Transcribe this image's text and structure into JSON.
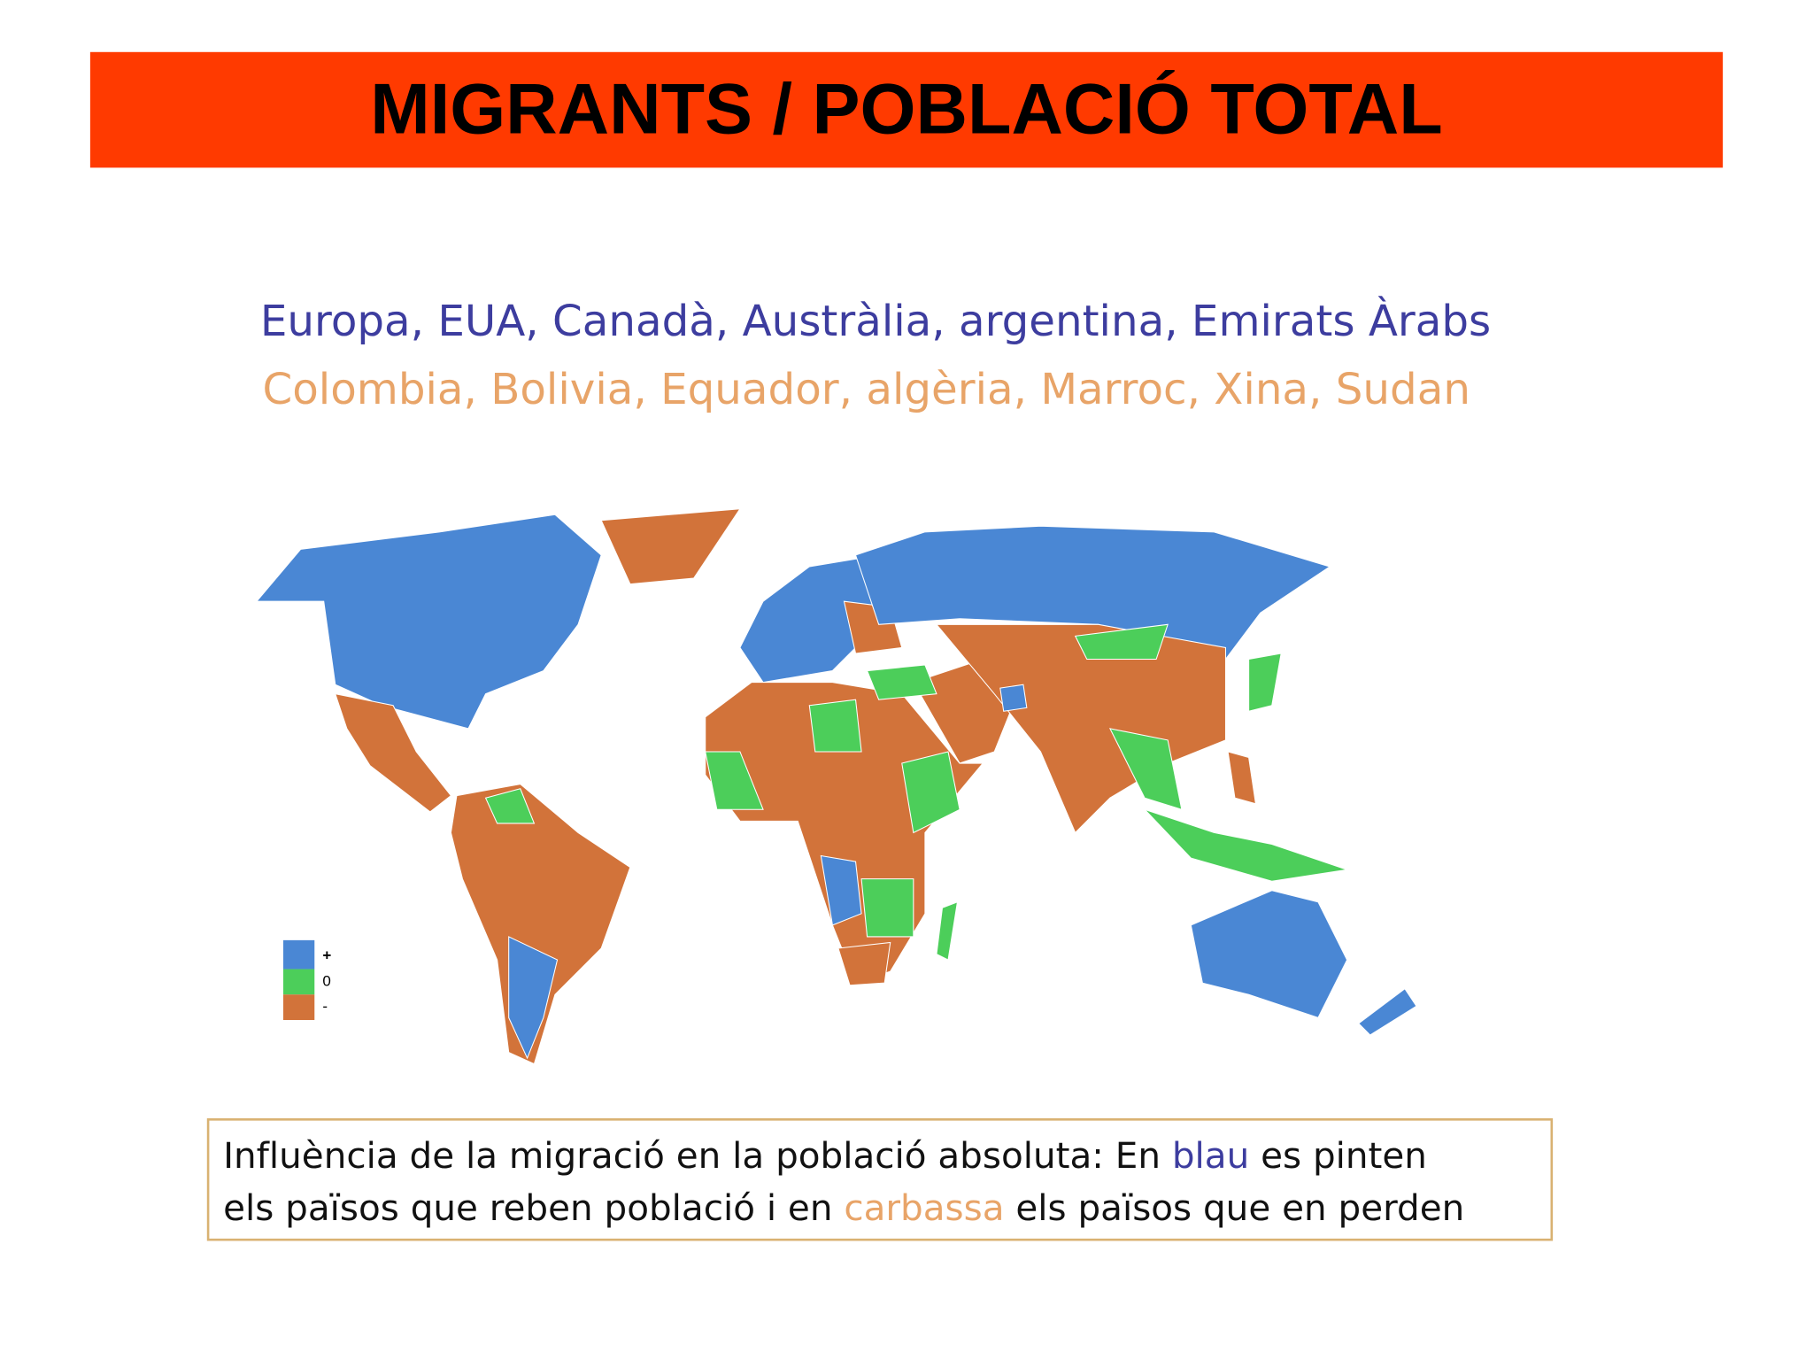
{
  "header": {
    "title": "MIGRANTS / POBLACIÓ TOTAL"
  },
  "subtitle": {
    "lines": [
      "Europa, EUA, Canadà, Austràlia, argentina, Emirats Àrabs",
      "Colombia, Bolivia, Equador, algèria, Marroc, Xina, Sudan"
    ]
  },
  "legend": {
    "items": [
      "+",
      "0",
      "-"
    ]
  },
  "caption": {
    "lines": [
      [
        "Influència de la migració en la població absoluta: En ",
        "blau",
        " es pinten"
      ],
      [
        "els països que reben població i en ",
        "carbassa",
        " els països que en perden"
      ]
    ]
  }
}
